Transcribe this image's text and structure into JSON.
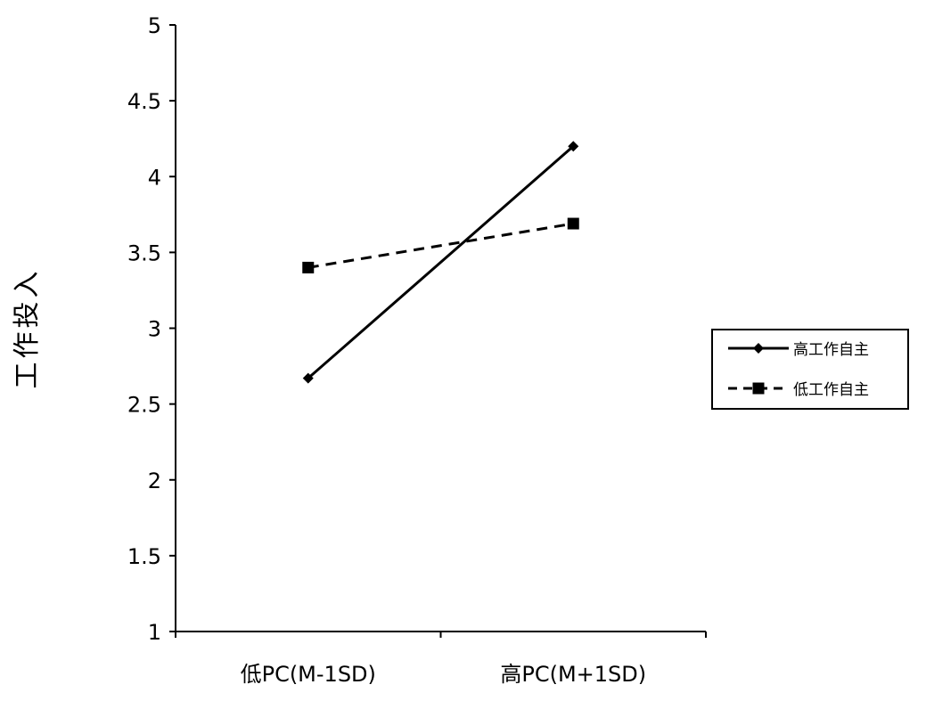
{
  "chart_data": {
    "type": "line",
    "title": "",
    "xlabel": "",
    "ylabel": "工作投入",
    "categories": [
      "低PC(M-1SD)",
      "高PC(M+1SD)"
    ],
    "ylim": [
      1,
      5
    ],
    "yticks": [
      "1",
      "1.5",
      "2",
      "2.5",
      "3",
      "3.5",
      "4",
      "4.5",
      "5"
    ],
    "grid": false,
    "legend_position": "right",
    "series": [
      {
        "name": "高工作自主",
        "values": [
          2.67,
          4.2
        ],
        "line_style": "solid",
        "marker": "diamond",
        "color": "#000000"
      },
      {
        "name": "低工作自主",
        "values": [
          3.4,
          3.69
        ],
        "line_style": "dashed",
        "marker": "square",
        "color": "#000000"
      }
    ]
  }
}
